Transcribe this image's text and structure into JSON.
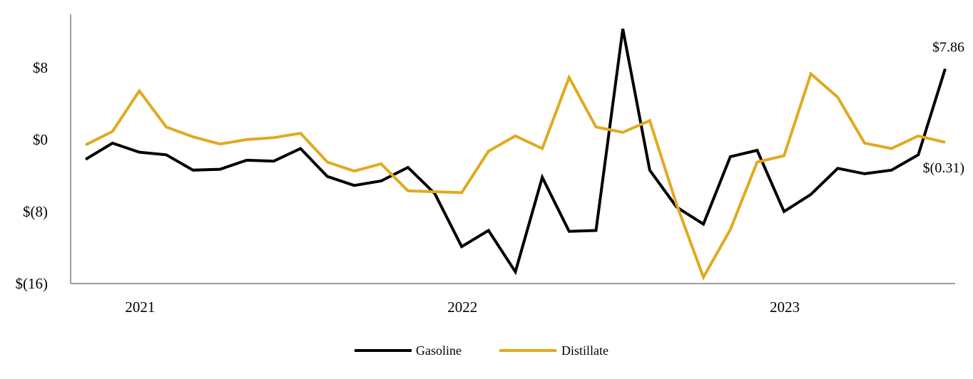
{
  "chart_data": {
    "type": "line",
    "title": "",
    "xlabel": "",
    "ylabel": "",
    "ylim": [
      -16,
      14
    ],
    "y_ticks": [
      {
        "value": 8,
        "label": "$8"
      },
      {
        "value": 0,
        "label": "$0"
      },
      {
        "value": -8,
        "label": "$(8)"
      },
      {
        "value": -16,
        "label": "$(16)"
      }
    ],
    "x_ticks": [
      {
        "index": 2,
        "label": "2021"
      },
      {
        "index": 14,
        "label": "2022"
      },
      {
        "index": 26,
        "label": "2023"
      }
    ],
    "grid": false,
    "legend_position": "bottom",
    "series": [
      {
        "name": "Gasoline",
        "color": "#000000",
        "values": [
          -2.2,
          -0.4,
          -1.4,
          -1.7,
          -3.4,
          -3.3,
          -2.3,
          -2.4,
          -1.0,
          -4.1,
          -5.1,
          -4.6,
          -3.1,
          -6.0,
          -11.9,
          -10.1,
          -14.7,
          -4.2,
          -10.2,
          -10.1,
          12.3,
          -3.4,
          -7.5,
          -9.4,
          -1.9,
          -1.2,
          -8.0,
          -6.1,
          -3.2,
          -3.8,
          -3.4,
          -1.7,
          7.86
        ]
      },
      {
        "name": "Distillate",
        "color": "#E0AA1F",
        "values": [
          -0.6,
          0.9,
          5.4,
          1.4,
          0.3,
          -0.5,
          0.0,
          0.2,
          0.7,
          -2.5,
          -3.5,
          -2.7,
          -5.7,
          -5.8,
          -5.9,
          -1.3,
          0.4,
          -1.0,
          6.9,
          1.4,
          0.8,
          2.1,
          -7.2,
          -15.3,
          -10.0,
          -2.5,
          -1.8,
          7.3,
          4.7,
          -0.4,
          -1.0,
          0.4,
          -0.31
        ]
      }
    ],
    "annotations": [
      {
        "series": "Gasoline",
        "index": 32,
        "text": "$7.86"
      },
      {
        "series": "Distillate",
        "index": 32,
        "text": "$(0.31)"
      }
    ]
  }
}
